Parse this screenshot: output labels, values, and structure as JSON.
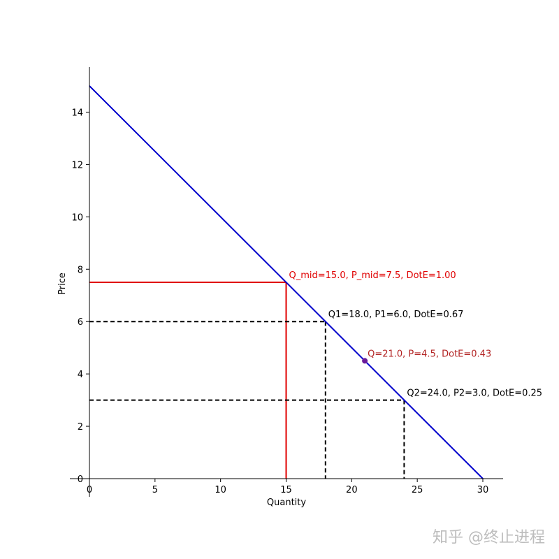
{
  "chart_data": {
    "type": "line",
    "xlabel": "Quantity",
    "ylabel": "Price",
    "xlim": [
      0,
      30
    ],
    "ylim": [
      0,
      15
    ],
    "x_ticks": [
      0,
      5,
      10,
      15,
      20,
      25,
      30
    ],
    "y_ticks": [
      0,
      2,
      4,
      6,
      8,
      10,
      12,
      14
    ],
    "grid": false,
    "series": [
      {
        "x": [
          0,
          30
        ],
        "y": [
          15,
          0
        ],
        "color": "#0000cc"
      }
    ],
    "guides": [
      {
        "point": [
          15,
          7.5
        ],
        "style": "solid",
        "color": "#e00000"
      },
      {
        "point": [
          18,
          6
        ],
        "style": "dashed",
        "color": "#000000"
      },
      {
        "point": [
          24,
          3
        ],
        "style": "dashed",
        "color": "#000000"
      }
    ],
    "points": [
      {
        "x": 21,
        "y": 4.5,
        "color": "#6a1b9a"
      }
    ],
    "annotations": [
      {
        "text": "Q_mid=15.0, P_mid=7.5, DotE=1.00",
        "x": 15,
        "y": 7.5,
        "color": "#e00000"
      },
      {
        "text": "Q1=18.0, P1=6.0, DotE=0.67",
        "x": 18,
        "y": 6,
        "color": "#000000"
      },
      {
        "text": "Q=21.0, P=4.5, DotE=0.43",
        "x": 21,
        "y": 4.5,
        "color": "#b22222"
      },
      {
        "text": "Q2=24.0, P2=3.0, DotE=0.25",
        "x": 24,
        "y": 3,
        "color": "#000000"
      }
    ]
  },
  "watermark": {
    "text": "知乎 @终止进程"
  }
}
